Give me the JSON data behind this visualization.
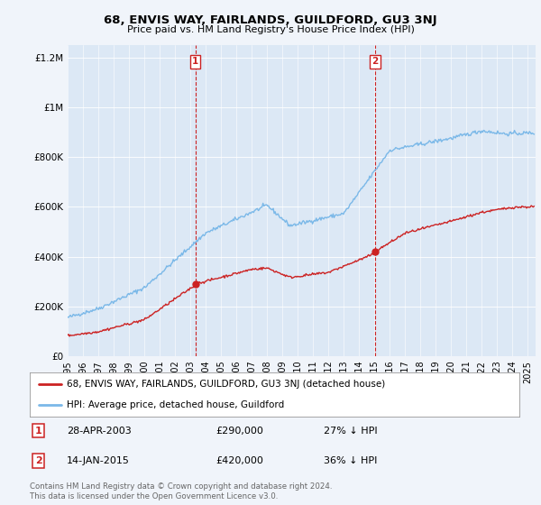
{
  "title": "68, ENVIS WAY, FAIRLANDS, GUILDFORD, GU3 3NJ",
  "subtitle": "Price paid vs. HM Land Registry's House Price Index (HPI)",
  "bg_color": "#f0f4fa",
  "plot_bg_color": "#dce8f5",
  "ylim": [
    0,
    1250000
  ],
  "yticks": [
    0,
    200000,
    400000,
    600000,
    800000,
    1000000,
    1200000
  ],
  "ytick_labels": [
    "£0",
    "£200K",
    "£400K",
    "£600K",
    "£800K",
    "£1M",
    "£1.2M"
  ],
  "sale1_date_num": 2003.32,
  "sale1_price": 290000,
  "sale1_label": "1",
  "sale2_date_num": 2015.04,
  "sale2_price": 420000,
  "sale2_label": "2",
  "hpi_color": "#7ab8e8",
  "price_color": "#cc2222",
  "vline_color": "#cc2222",
  "footer_text": "Contains HM Land Registry data © Crown copyright and database right 2024.\nThis data is licensed under the Open Government Licence v3.0.",
  "legend1_label": "68, ENVIS WAY, FAIRLANDS, GUILDFORD, GU3 3NJ (detached house)",
  "legend2_label": "HPI: Average price, detached house, Guildford",
  "annot1_date": "28-APR-2003",
  "annot1_price": "£290,000",
  "annot1_hpi": "27% ↓ HPI",
  "annot2_date": "14-JAN-2015",
  "annot2_price": "£420,000",
  "annot2_hpi": "36% ↓ HPI",
  "xmin": 1995.0,
  "xmax": 2025.5,
  "xticks": [
    1995,
    1996,
    1997,
    1998,
    1999,
    2000,
    2001,
    2002,
    2003,
    2004,
    2005,
    2006,
    2007,
    2008,
    2009,
    2010,
    2011,
    2012,
    2013,
    2014,
    2015,
    2016,
    2017,
    2018,
    2019,
    2020,
    2021,
    2022,
    2023,
    2024,
    2025
  ]
}
